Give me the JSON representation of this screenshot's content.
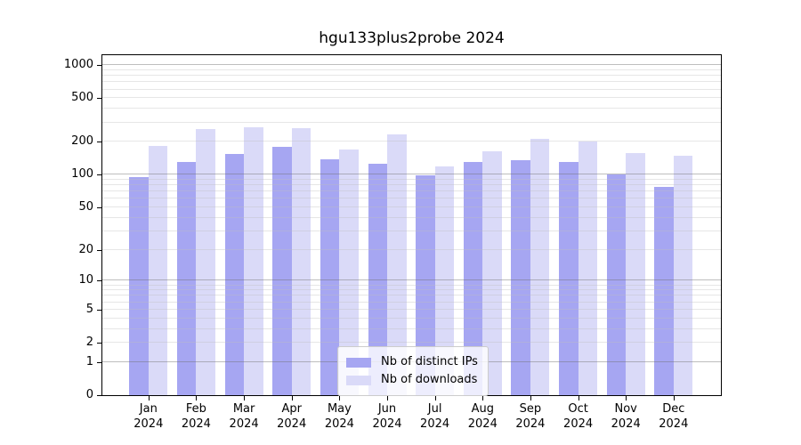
{
  "title": "hgu133plus2probe 2024",
  "colors": {
    "ips_bar": "#a6a6f2",
    "downloads_bar": "#dadaf8",
    "axis": "#000000",
    "grid_major": "#b0b0b0",
    "grid_minor": "#e6e6e6",
    "legend_border": "#cccccc",
    "background": "#ffffff"
  },
  "legend": {
    "items": [
      {
        "label": "Nb of distinct IPs",
        "color": "#a6a6f2"
      },
      {
        "label": "Nb of downloads",
        "color": "#dadaf8"
      }
    ]
  },
  "chart_data": {
    "type": "bar",
    "title": "hgu133plus2probe 2024",
    "yscale": "log10(1+y)",
    "grid": "on",
    "legend_position": "inside lower-center",
    "categories": [
      "Jan 2024",
      "Feb 2024",
      "Mar 2024",
      "Apr 2024",
      "May 2024",
      "Jun 2024",
      "Jul 2024",
      "Aug 2024",
      "Sep 2024",
      "Oct 2024",
      "Nov 2024",
      "Dec 2024"
    ],
    "series": [
      {
        "name": "Nb of distinct IPs",
        "color": "#a6a6f2",
        "values": [
          96,
          130,
          155,
          180,
          138,
          126,
          98,
          130,
          135,
          131,
          100,
          78
        ]
      },
      {
        "name": "Nb of downloads",
        "color": "#dadaf8",
        "values": [
          185,
          260,
          272,
          266,
          172,
          234,
          119,
          163,
          212,
          200,
          159,
          149
        ]
      }
    ],
    "yticks": [
      0,
      1,
      2,
      5,
      10,
      20,
      50,
      100,
      200,
      500,
      1000
    ],
    "ylim": [
      0,
      1240
    ],
    "xlabel": "",
    "ylabel": ""
  }
}
